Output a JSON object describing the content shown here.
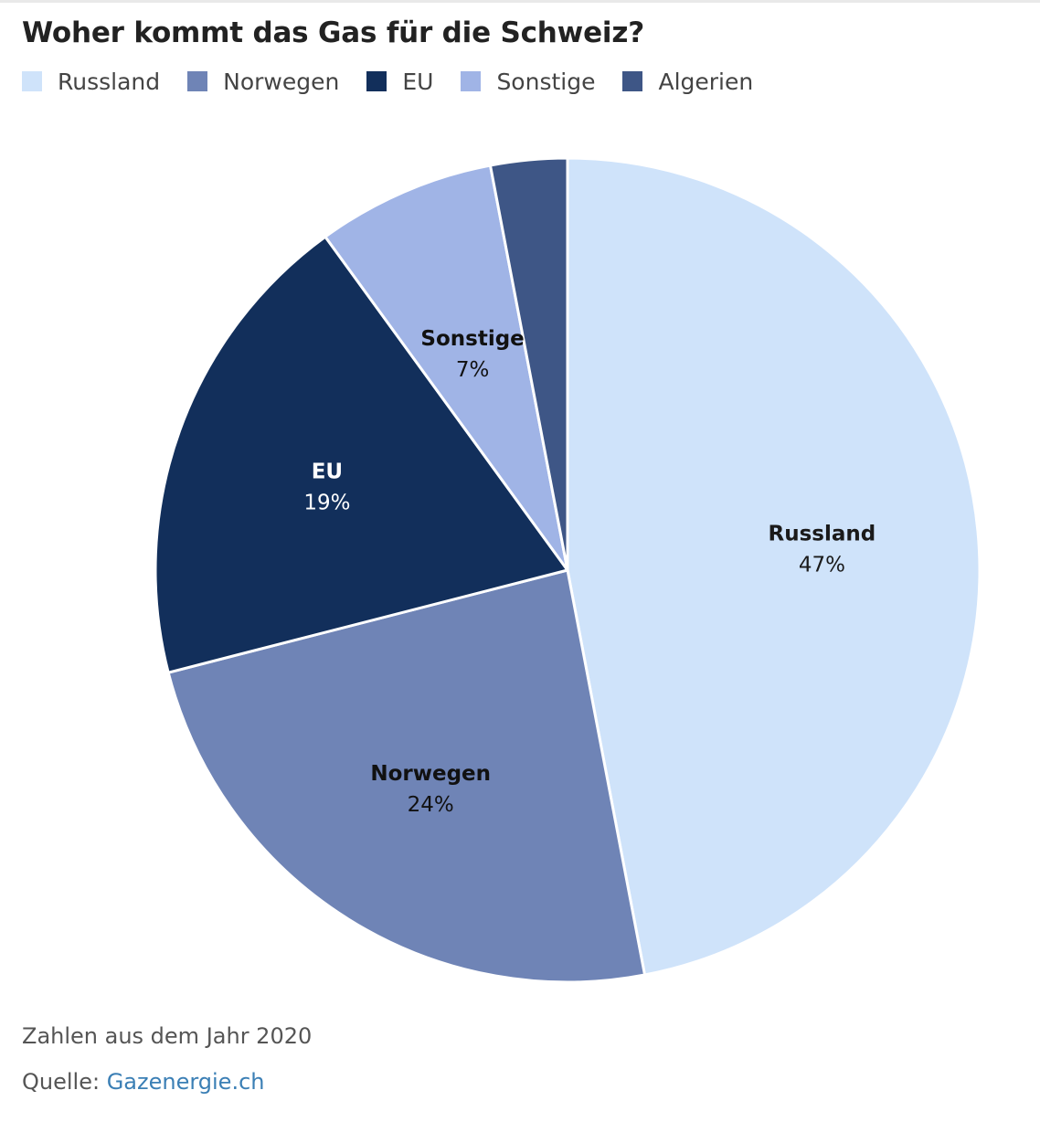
{
  "title": "Woher kommt das Gas für die Schweiz?",
  "note": "Zahlen aus dem Jahr 2020",
  "source": {
    "prefix": "Quelle: ",
    "link_text": "Gazenergie.ch"
  },
  "chart_data": {
    "type": "pie",
    "title": "Woher kommt das Gas für die Schweiz?",
    "unit": "%",
    "legend_placement": "top-left",
    "slices": [
      {
        "label": "Russland",
        "value": 47,
        "value_label": "47%",
        "color": "#cfe3fa",
        "text_color": "#1a1a1a",
        "show_label": true
      },
      {
        "label": "Norwegen",
        "value": 24,
        "value_label": "24%",
        "color": "#6f84b6",
        "text_color": "#111111",
        "show_label": true
      },
      {
        "label": "EU",
        "value": 19,
        "value_label": "19%",
        "color": "#122f5b",
        "text_color": "#ffffff",
        "show_label": true
      },
      {
        "label": "Sonstige",
        "value": 7,
        "value_label": "7%",
        "color": "#a0b4e6",
        "text_color": "#111111",
        "show_label": true
      },
      {
        "label": "Algerien",
        "value": 3,
        "value_label": "",
        "color": "#3e5686",
        "text_color": "#ffffff",
        "show_label": false
      }
    ]
  }
}
